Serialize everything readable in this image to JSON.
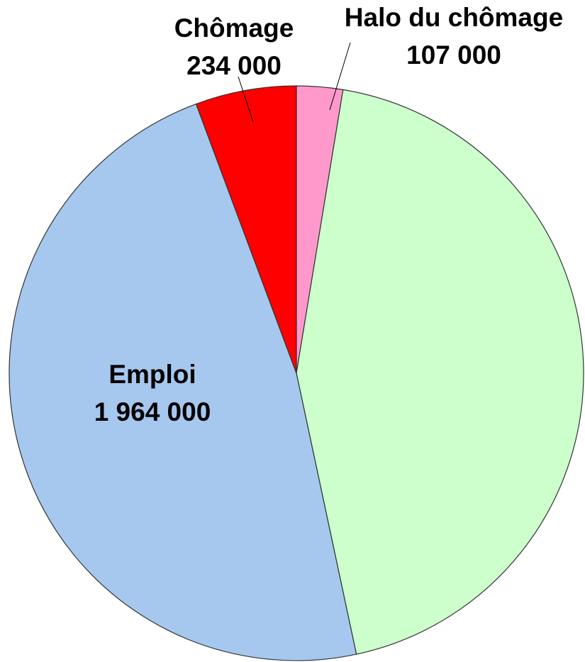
{
  "chart_data": {
    "type": "pie",
    "categories": [
      "Halo du chômage",
      null,
      "Emploi",
      "Chômage"
    ],
    "values": [
      107000,
      1815000,
      1964000,
      234000
    ],
    "value_labels": [
      "107 000",
      null,
      "1 964 000",
      "234 000"
    ],
    "colors": [
      "#ff99cc",
      "#ccffcc",
      "#a6c8ee",
      "#ff0000"
    ]
  }
}
